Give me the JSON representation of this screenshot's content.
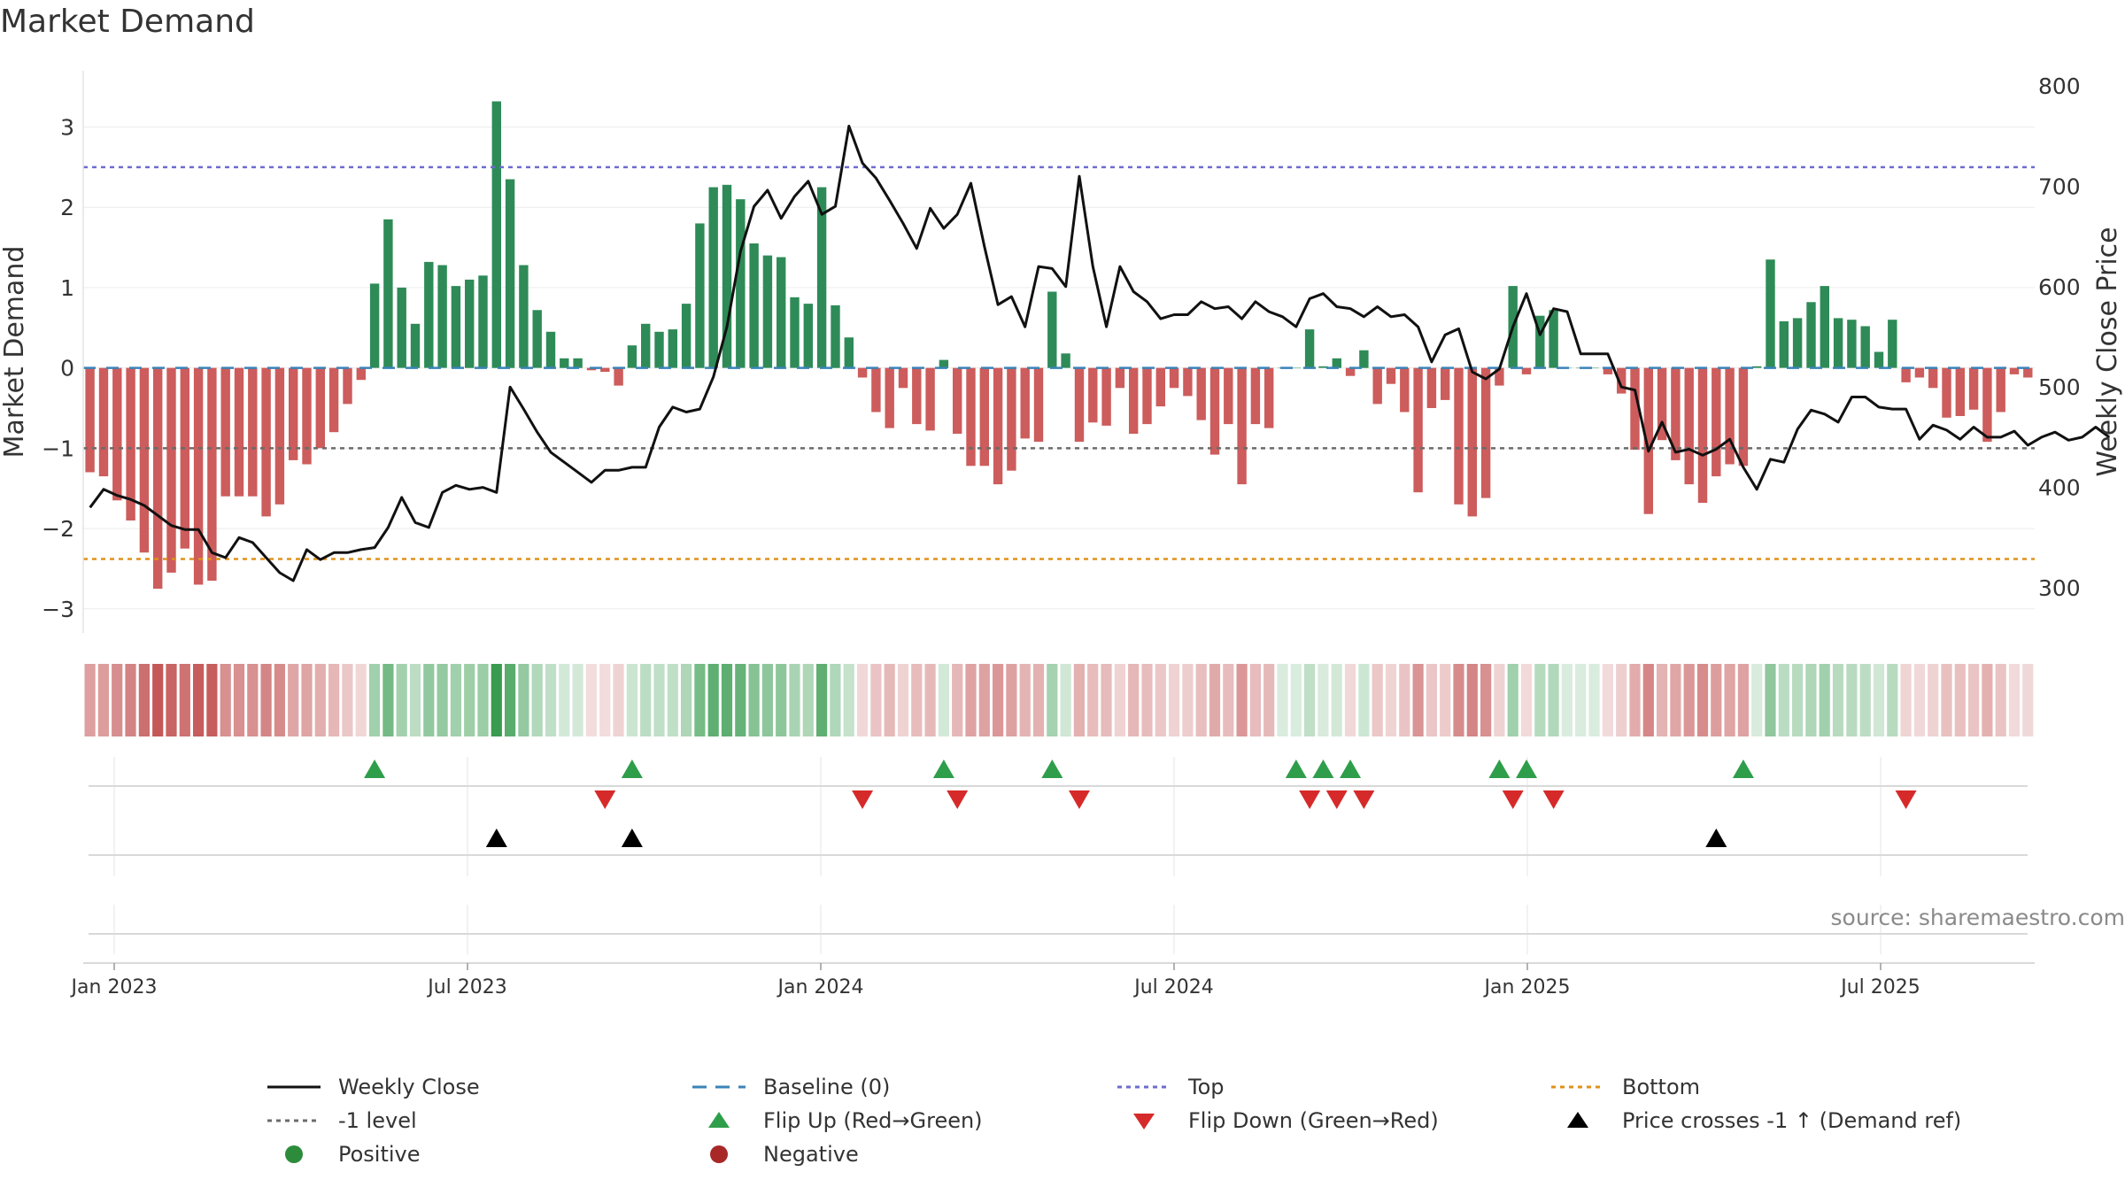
{
  "title": "Market Demand",
  "source": "source: sharemaestro.com",
  "chart_data": {
    "type": "bar",
    "title": "Market Demand",
    "ylabel": "Market Demand",
    "y2label": "Weekly Close Price",
    "ylim": [
      -3.3,
      3.7
    ],
    "y2lim": [
      255,
      815
    ],
    "yticks": [
      3,
      2,
      1,
      0,
      -1,
      -2,
      -3
    ],
    "ytick_labels": [
      "3",
      "2",
      "1",
      "0",
      "−1",
      "−2",
      "−3"
    ],
    "y2ticks": [
      800,
      700,
      600,
      500,
      400,
      300
    ],
    "y2tick_labels": [
      "800",
      "700",
      "600",
      "500",
      "400",
      "300"
    ],
    "xtick_labels": [
      "Jan 2023",
      "Jul 2023",
      "Jan 2024",
      "Jul 2024",
      "Jan 2025",
      "Jul 2025"
    ],
    "reference_lines": {
      "top": 2.5,
      "minus_one": -1.0,
      "bottom": -2.38,
      "baseline": 0
    },
    "series": [
      {
        "name": "Market Demand",
        "values": [
          -1.3,
          -1.35,
          -1.65,
          -1.9,
          -2.3,
          -2.75,
          -2.55,
          -2.25,
          -2.7,
          -2.65,
          -1.6,
          -1.6,
          -1.6,
          -1.85,
          -1.7,
          -1.15,
          -1.2,
          -1.0,
          -0.8,
          -0.45,
          -0.15,
          1.05,
          1.85,
          1.0,
          0.55,
          1.32,
          1.28,
          1.02,
          1.1,
          1.15,
          3.32,
          2.35,
          1.28,
          0.72,
          0.45,
          0.12,
          0.12,
          -0.03,
          -0.05,
          -0.22,
          0.28,
          0.55,
          0.45,
          0.48,
          0.8,
          1.8,
          2.25,
          2.28,
          2.1,
          1.55,
          1.4,
          1.38,
          0.88,
          0.8,
          2.25,
          0.78,
          0.38,
          -0.12,
          -0.55,
          -0.75,
          -0.25,
          -0.7,
          -0.78,
          0.1,
          -0.82,
          -1.22,
          -1.22,
          -1.45,
          -1.28,
          -0.88,
          -0.92,
          0.95,
          0.18,
          -0.92,
          -0.68,
          -0.72,
          -0.25,
          -0.82,
          -0.7,
          -0.48,
          -0.25,
          -0.35,
          -0.65,
          -1.08,
          -0.7,
          -1.45,
          -0.7,
          -0.75,
          0.0,
          0.0,
          0.48,
          0.02,
          0.12,
          -0.1,
          0.22,
          -0.45,
          -0.2,
          -0.55,
          -1.55,
          -0.5,
          -0.4,
          -1.7,
          -1.85,
          -1.62,
          -0.22,
          1.02,
          -0.08,
          0.65,
          0.72,
          0.0,
          0.0,
          0.0,
          -0.08,
          -0.32,
          -1.02,
          -1.82,
          -0.9,
          -1.15,
          -1.45,
          -1.68,
          -1.35,
          -1.2,
          -1.22,
          0.02,
          1.35,
          0.58,
          0.62,
          0.82,
          1.02,
          0.62,
          0.6,
          0.52,
          0.2,
          0.6,
          -0.18,
          -0.12,
          -0.25,
          -0.62,
          -0.6,
          -0.52,
          -0.92,
          -0.55,
          -0.08,
          -0.12
        ]
      },
      {
        "name": "Weekly Close",
        "values": [
          380,
          398,
          392,
          388,
          382,
          372,
          362,
          358,
          358,
          335,
          330,
          350,
          345,
          330,
          315,
          307,
          338,
          328,
          335,
          335,
          338,
          340,
          360,
          390,
          365,
          360,
          395,
          402,
          398,
          400,
          395,
          500,
          478,
          455,
          435,
          425,
          415,
          405,
          417,
          417,
          420,
          420,
          460,
          480,
          475,
          478,
          510,
          560,
          635,
          680,
          696,
          668,
          690,
          705,
          672,
          680,
          760,
          723,
          708,
          686,
          663,
          638,
          678,
          658,
          672,
          703,
          640,
          582,
          590,
          560,
          620,
          618,
          600,
          710,
          620,
          560,
          620,
          595,
          585,
          568,
          572,
          572,
          585,
          578,
          580,
          568,
          585,
          575,
          570,
          560,
          588,
          593,
          580,
          578,
          570,
          580,
          570,
          572,
          560,
          525,
          552,
          558,
          515,
          508,
          518,
          560,
          593,
          552,
          578,
          575,
          533,
          533,
          533,
          500,
          497,
          436,
          465,
          435,
          438,
          432,
          438,
          448,
          420,
          398,
          428,
          425,
          458,
          477,
          473,
          465,
          490,
          490,
          480,
          478,
          478,
          448,
          462,
          457,
          448,
          460,
          450,
          450,
          456,
          442,
          450,
          455,
          447,
          450,
          460,
          450
        ]
      }
    ],
    "flip_up": [
      21,
      40,
      63,
      71,
      89,
      91,
      93,
      104,
      106,
      122
    ],
    "flip_down": [
      38,
      57,
      64,
      73,
      90,
      92,
      94,
      105,
      108,
      134
    ],
    "price_cross": [
      30,
      40,
      120
    ]
  },
  "legend": [
    {
      "label": "Weekly Close",
      "icon": "solid-line",
      "color": "#111111"
    },
    {
      "label": "Baseline (0)",
      "icon": "dashed-line",
      "color": "#3a83b8"
    },
    {
      "label": "Top",
      "icon": "dotted-line",
      "color": "#6c6cd0"
    },
    {
      "label": "Bottom",
      "icon": "dotted-line",
      "color": "#e0901a"
    },
    {
      "label": "-1 level",
      "icon": "dotted-line",
      "color": "#6b6b6b"
    },
    {
      "label": "Flip Up (Red→Green)",
      "icon": "triangle-up",
      "color": "#2e9e4a"
    },
    {
      "label": "Flip Down (Green→Red)",
      "icon": "triangle-down",
      "color": "#d62a2a"
    },
    {
      "label": "Price crosses -1 ↑ (Demand ref)",
      "icon": "triangle-up",
      "color": "#000000"
    },
    {
      "label": "Positive",
      "icon": "circle",
      "color": "#2c8c3c"
    },
    {
      "label": "Negative",
      "icon": "circle",
      "color": "#a82828"
    }
  ],
  "colors": {
    "positive": "#2e8b57",
    "negative": "#cd5c5c",
    "price": "#111111"
  }
}
